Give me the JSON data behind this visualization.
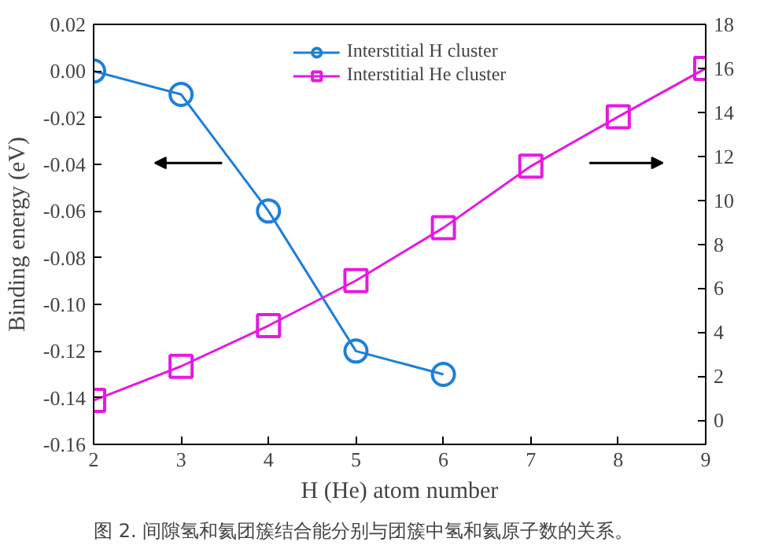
{
  "chart_data": {
    "type": "line",
    "xlabel": "H (He) atom number",
    "ylabel": "Binding energy (eV)",
    "x": [
      2,
      3,
      4,
      5,
      6,
      7,
      8,
      9
    ],
    "series": [
      {
        "name": "Interstitial H cluster",
        "color": "#1e7fd8",
        "marker": "circle",
        "values": [
          0.0,
          -0.01,
          -0.06,
          -0.12,
          -0.13,
          null,
          null,
          null
        ]
      },
      {
        "name": "Interstitial He cluster",
        "color": "#e619e0",
        "marker": "square",
        "axis": "y2",
        "values": [
          0.9,
          2.45,
          4.3,
          6.35,
          8.75,
          11.55,
          13.8,
          16.0
        ]
      }
    ],
    "xlim": [
      2,
      9
    ],
    "xticks": [
      2,
      3,
      4,
      5,
      6,
      7,
      8,
      9
    ],
    "ylim": [
      -0.16,
      0.02
    ],
    "yticks": [
      {
        "value": -0.16,
        "label": "-0.16"
      },
      {
        "value": -0.14,
        "label": "-0.14"
      },
      {
        "value": -0.12,
        "label": "-0.12"
      },
      {
        "value": -0.1,
        "label": "-0.10"
      },
      {
        "value": -0.08,
        "label": "-0.08"
      },
      {
        "value": -0.06,
        "label": "-0.06"
      },
      {
        "value": -0.04,
        "label": "-0.04"
      },
      {
        "value": -0.02,
        "label": "-0.02"
      },
      {
        "value": 0,
        "label": "0.00"
      },
      {
        "value": 0.02,
        "label": "0.02"
      }
    ],
    "y2lim": [
      -1.1,
      18
    ],
    "y2ticks": [
      0,
      2,
      4,
      6,
      8,
      10,
      12,
      14,
      16,
      18
    ],
    "legend": "top",
    "grid": false,
    "annotations": [
      "图 2. 间隙氢和氦团簇结合能分别与团簇中氢和氦原子数的关系。"
    ]
  }
}
